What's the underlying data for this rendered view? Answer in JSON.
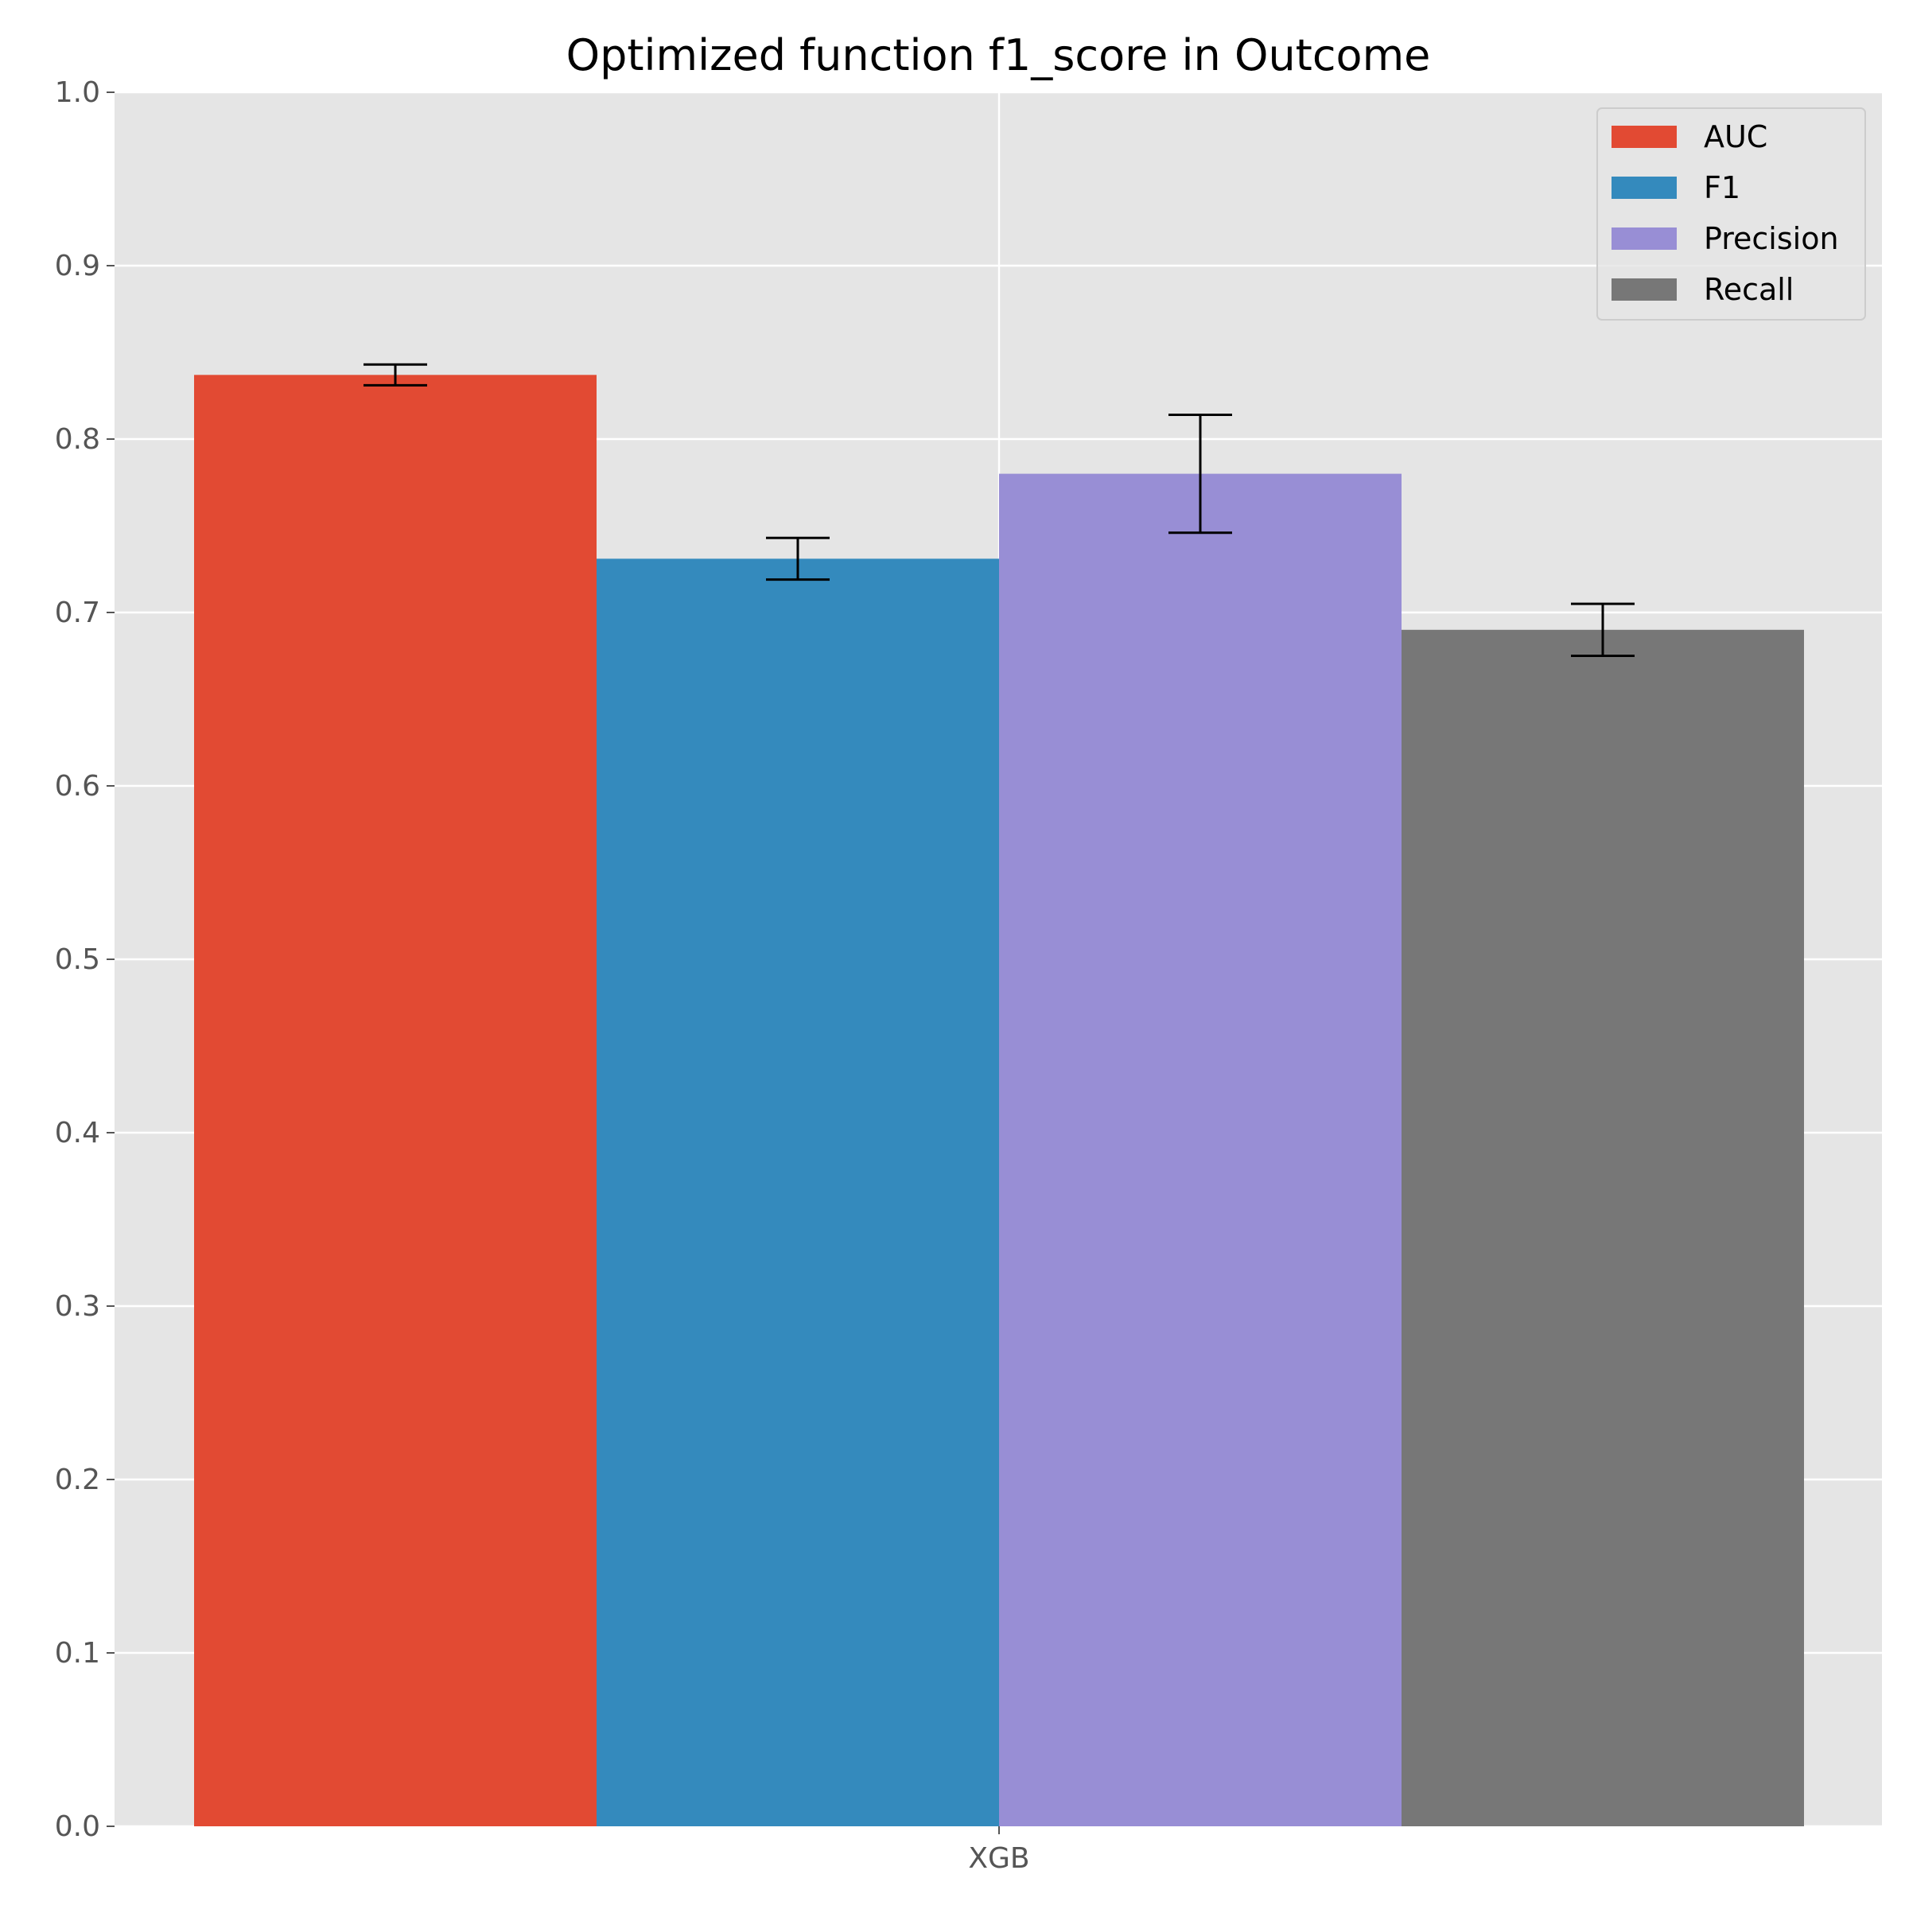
{
  "chart_data": {
    "type": "bar",
    "title": "Optimized function f1_score in Outcome",
    "xlabel": "",
    "ylabel": "",
    "categories": [
      "XGB"
    ],
    "ylim": [
      0,
      1.0
    ],
    "yticks": [
      "0.0",
      "0.1",
      "0.2",
      "0.3",
      "0.4",
      "0.5",
      "0.6",
      "0.7",
      "0.8",
      "0.9",
      "1.0"
    ],
    "grid": true,
    "legend_position": "top-right",
    "series": [
      {
        "name": "AUC",
        "values": [
          0.837
        ],
        "error": [
          0.006
        ],
        "color": "#E24A33"
      },
      {
        "name": "F1",
        "values": [
          0.731
        ],
        "error": [
          0.012
        ],
        "color": "#348ABD"
      },
      {
        "name": "Precision",
        "values": [
          0.78
        ],
        "error": [
          0.034
        ],
        "color": "#988ED5"
      },
      {
        "name": "Recall",
        "values": [
          0.69
        ],
        "error": [
          0.015
        ],
        "color": "#777777"
      }
    ],
    "colors": {
      "plot_background": "#E5E5E5",
      "grid": "#FFFFFF",
      "errorbar": "#000000"
    }
  }
}
